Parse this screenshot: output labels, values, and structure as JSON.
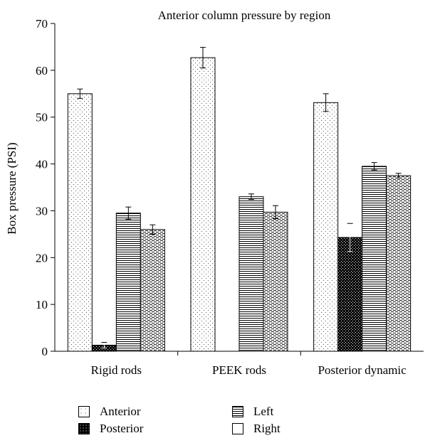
{
  "chart_data": {
    "type": "bar",
    "title": "Anterior column pressure by region",
    "xlabel": "",
    "ylabel": "Box pressure (PSI)",
    "ylim": [
      0,
      70
    ],
    "yticks": [
      0,
      10,
      20,
      30,
      40,
      50,
      60,
      70
    ],
    "categories": [
      "Rigid rods",
      "PEEK rods",
      "Posterior dynamic"
    ],
    "series": [
      {
        "name": "Anterior",
        "values": [
          55.0,
          62.7,
          53.1
        ],
        "error": [
          1.0,
          2.2,
          1.9
        ],
        "pattern": "dots-sparse"
      },
      {
        "name": "Posterior",
        "values": [
          1.3,
          0.0,
          24.3
        ],
        "error": [
          0.6,
          0.0,
          3.0
        ],
        "pattern": "dots-dense"
      },
      {
        "name": "Left",
        "values": [
          29.5,
          33.0,
          39.5
        ],
        "error": [
          1.3,
          0.6,
          0.8
        ],
        "pattern": "hlines"
      },
      {
        "name": "Right",
        "values": [
          26.0,
          29.7,
          37.5
        ],
        "error": [
          1.0,
          1.4,
          0.5
        ],
        "pattern": "dashes"
      }
    ],
    "legend": {
      "position": "bottom"
    },
    "grid": false
  }
}
